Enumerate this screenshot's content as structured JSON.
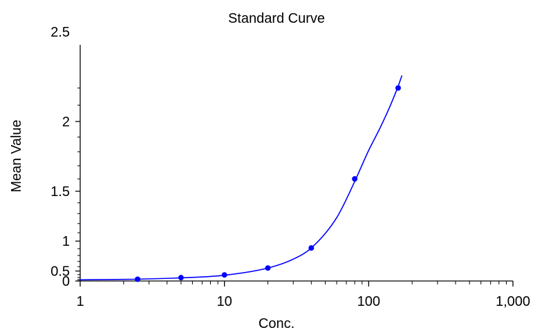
{
  "chart_data": {
    "type": "scatter",
    "title": "Standard Curve",
    "xlabel": "Conc.",
    "ylabel": "Mean Value",
    "x_scale": "log",
    "y_scale": "quadratic",
    "xlim": [
      1,
      1000
    ],
    "ylim": [
      0,
      2.5
    ],
    "x_ticks": [
      {
        "value": 1,
        "label": "1"
      },
      {
        "value": 10,
        "label": "10"
      },
      {
        "value": 100,
        "label": "100"
      },
      {
        "value": 1000,
        "label": "1,000"
      }
    ],
    "y_ticks": [
      {
        "value": 0,
        "label": "0"
      },
      {
        "value": 0.5,
        "label": "0.5"
      },
      {
        "value": 1,
        "label": "1"
      },
      {
        "value": 1.5,
        "label": "1.5"
      },
      {
        "value": 2,
        "label": "2"
      },
      {
        "value": 2.5,
        "label": "2.5"
      }
    ],
    "grid": false,
    "color": "#0000ff",
    "series": [
      {
        "points": [
          {
            "x": 2.5,
            "y": 0.21
          },
          {
            "x": 5,
            "y": 0.29
          },
          {
            "x": 10,
            "y": 0.39
          },
          {
            "x": 20,
            "y": 0.57
          },
          {
            "x": 40,
            "y": 0.91
          },
          {
            "x": 80,
            "y": 1.6
          },
          {
            "x": 160,
            "y": 2.2
          }
        ]
      }
    ],
    "fit_curve": {
      "x": [
        1,
        2,
        5,
        10,
        20,
        30,
        40,
        60,
        80,
        100,
        120,
        140,
        160,
        170
      ],
      "y": [
        0.17,
        0.2,
        0.28,
        0.38,
        0.57,
        0.74,
        0.91,
        1.26,
        1.58,
        1.81,
        1.96,
        2.09,
        2.21,
        2.27
      ]
    }
  }
}
